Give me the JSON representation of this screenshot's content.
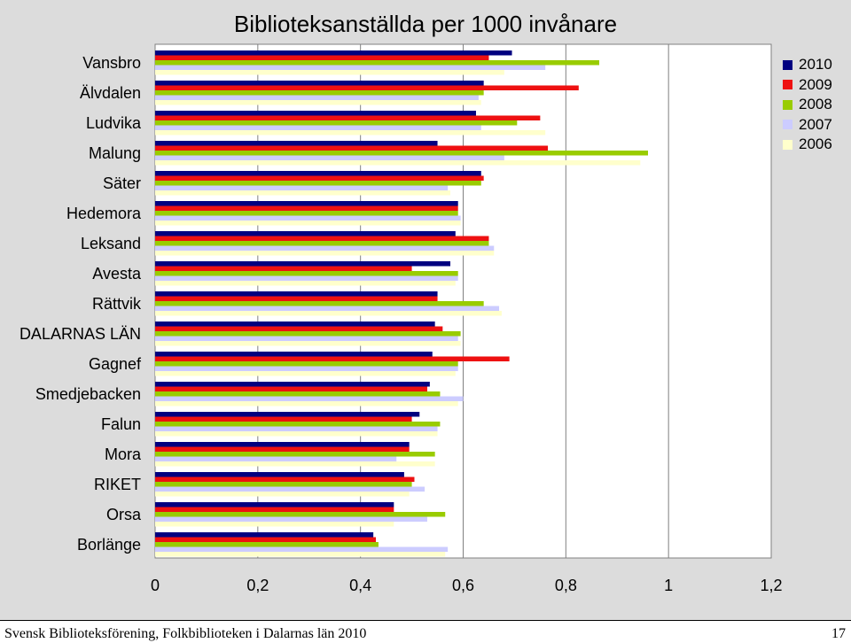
{
  "chart_data": {
    "type": "bar",
    "orientation": "horizontal",
    "title": "Biblioteksanställda per 1000 invånare",
    "xlabel": "",
    "ylabel": "",
    "xlim": [
      0,
      1.2
    ],
    "x_ticks": [
      "0",
      "0,2",
      "0,4",
      "0,6",
      "0,8",
      "1",
      "1,2"
    ],
    "x_tick_values": [
      0,
      0.2,
      0.4,
      0.6,
      0.8,
      1.0,
      1.2
    ],
    "grid": "vertical",
    "legend_position": "top-right",
    "categories": [
      "Vansbro",
      "Älvdalen",
      "Ludvika",
      "Malung",
      "Säter",
      "Hedemora",
      "Leksand",
      "Avesta",
      "Rättvik",
      "DALARNAS LÄN",
      "Gagnef",
      "Smedjebacken",
      "Falun",
      "Mora",
      "RIKET",
      "Orsa",
      "Borlänge"
    ],
    "series": [
      {
        "name": "2010",
        "color": "#000080",
        "values": [
          0.695,
          0.64,
          0.625,
          0.55,
          0.635,
          0.59,
          0.585,
          0.575,
          0.55,
          0.545,
          0.54,
          0.535,
          0.515,
          0.495,
          0.485,
          0.465,
          0.425
        ]
      },
      {
        "name": "2009",
        "color": "#ee1111",
        "values": [
          0.65,
          0.825,
          0.75,
          0.765,
          0.64,
          0.59,
          0.65,
          0.5,
          0.55,
          0.56,
          0.69,
          0.53,
          0.5,
          0.495,
          0.505,
          0.465,
          0.43
        ]
      },
      {
        "name": "2008",
        "color": "#99cc00",
        "values": [
          0.865,
          0.64,
          0.705,
          0.96,
          0.635,
          0.59,
          0.65,
          0.59,
          0.64,
          0.595,
          0.59,
          0.555,
          0.555,
          0.545,
          0.5,
          0.565,
          0.435
        ]
      },
      {
        "name": "2007",
        "color": "#ccccff",
        "values": [
          0.76,
          0.63,
          0.635,
          0.68,
          0.57,
          0.595,
          0.66,
          0.59,
          0.67,
          0.59,
          0.59,
          0.6,
          0.55,
          0.47,
          0.525,
          0.53,
          0.57
        ]
      },
      {
        "name": "2006",
        "color": "#ffffcc",
        "values": [
          0.68,
          0.635,
          0.76,
          0.945,
          0.575,
          0.595,
          0.66,
          0.585,
          0.675,
          0.595,
          0.585,
          0.59,
          0.55,
          0.545,
          0.495,
          0.465,
          0.565
        ]
      }
    ]
  },
  "footer": {
    "text": "Svensk Biblioteksförening, Folkbiblioteken i Dalarnas län 2010",
    "page_number": "17"
  }
}
